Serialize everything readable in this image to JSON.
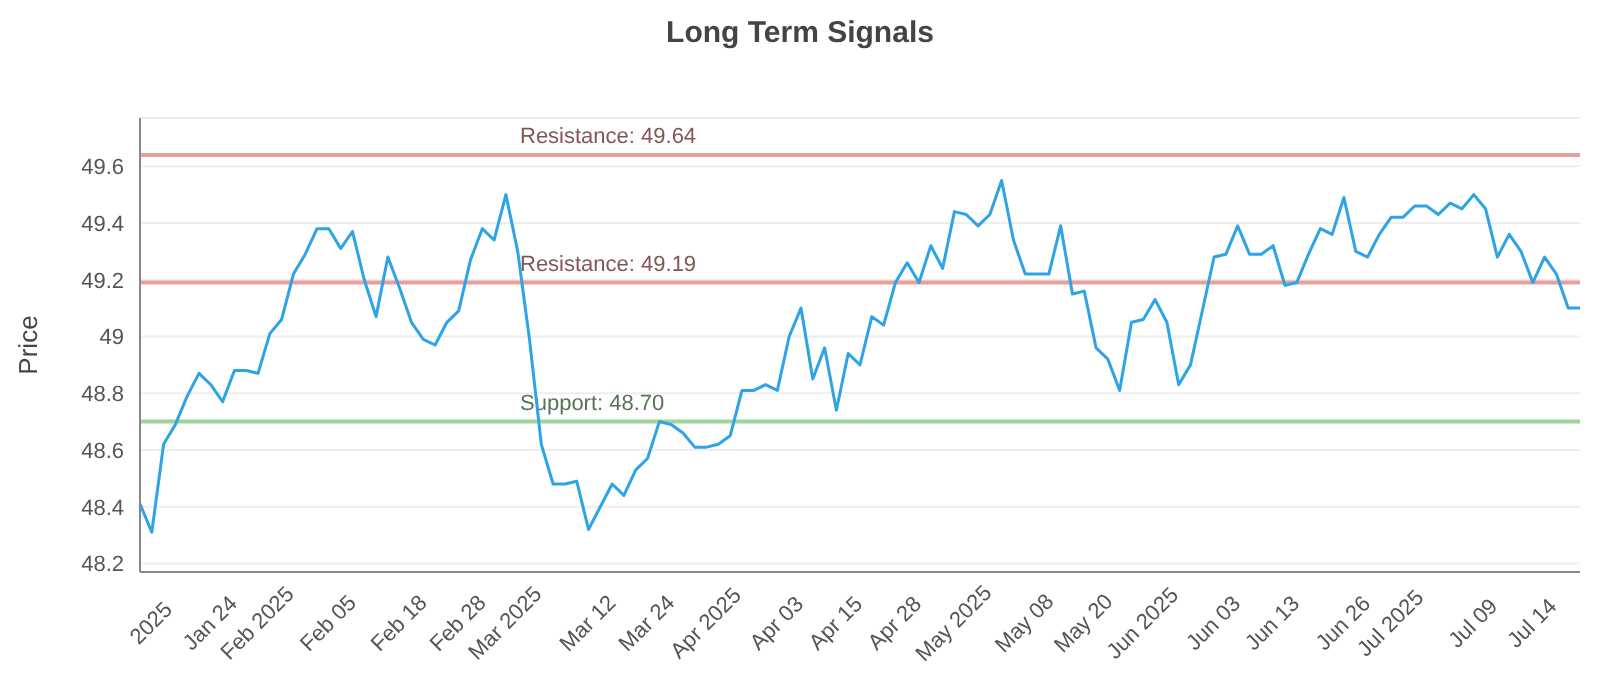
{
  "chart_data": {
    "type": "line",
    "title": "Long Term Signals",
    "ylabel": "Price",
    "categories": [
      null,
      "2025",
      null,
      null,
      null,
      null,
      "Jan 24",
      null,
      null,
      null,
      "Feb 2025",
      null,
      null,
      null,
      null,
      null,
      "Feb 05",
      null,
      null,
      null,
      null,
      null,
      "Feb 18",
      null,
      null,
      null,
      null,
      "Feb 28",
      null,
      null,
      null,
      "Mar 2025",
      null,
      null,
      null,
      null,
      null,
      null,
      "Mar 12",
      null,
      null,
      null,
      null,
      "Mar 24",
      null,
      null,
      null,
      null,
      "Apr 2025",
      null,
      null,
      null,
      null,
      null,
      "Apr 03",
      null,
      null,
      null,
      null,
      "Apr 15",
      null,
      null,
      null,
      null,
      "Apr 28",
      null,
      null,
      null,
      null,
      "May 2025",
      null,
      null,
      null,
      null,
      null,
      "May 08",
      null,
      null,
      null,
      null,
      "May 20",
      null,
      null,
      null,
      null,
      "Jun 2025",
      null,
      null,
      null,
      null,
      null,
      "Jun 03",
      null,
      null,
      null,
      null,
      "Jun 13",
      null,
      null,
      null,
      null,
      null,
      "Jun 26",
      null,
      null,
      null,
      "Jul 2025",
      null,
      null,
      null,
      null,
      null,
      null,
      "Jul 09",
      null,
      null,
      null,
      null,
      "Jul 14",
      null,
      null,
      null,
      null
    ],
    "series": [
      {
        "color": "#2ea3e6",
        "values": [
          48.41,
          48.31,
          48.62,
          48.69,
          48.79,
          48.87,
          48.83,
          48.77,
          48.88,
          48.88,
          48.87,
          49.01,
          49.06,
          49.22,
          49.29,
          49.38,
          49.38,
          49.31,
          49.37,
          49.2,
          49.07,
          49.28,
          49.17,
          49.05,
          48.99,
          48.97,
          49.05,
          49.09,
          49.27,
          49.38,
          49.34,
          49.5,
          49.3,
          48.99,
          48.62,
          48.48,
          48.48,
          48.49,
          48.32,
          48.4,
          48.48,
          48.44,
          48.53,
          48.57,
          48.7,
          48.69,
          48.66,
          48.61,
          48.61,
          48.62,
          48.65,
          48.81,
          48.81,
          48.83,
          48.81,
          49.0,
          49.1,
          48.85,
          48.96,
          48.74,
          48.94,
          48.9,
          49.07,
          49.04,
          49.19,
          49.26,
          49.19,
          49.32,
          49.24,
          49.44,
          49.43,
          49.39,
          49.43,
          49.55,
          49.34,
          49.22,
          49.22,
          49.22,
          49.39,
          49.15,
          49.16,
          48.96,
          48.92,
          48.81,
          49.05,
          49.06,
          49.13,
          49.05,
          48.83,
          48.9,
          49.09,
          49.28,
          49.29,
          49.39,
          49.29,
          49.29,
          49.32,
          49.18,
          49.19,
          49.29,
          49.38,
          49.36,
          49.49,
          49.3,
          49.28,
          49.36,
          49.42,
          49.42,
          49.46,
          49.46,
          49.43,
          49.47,
          49.45,
          49.5,
          49.45,
          49.28,
          49.36,
          49.3,
          49.19,
          49.28,
          49.22,
          49.1,
          49.1
        ]
      }
    ],
    "ylim": [
      48.17,
      49.77
    ],
    "yticks": [
      48.2,
      48.4,
      48.6,
      48.8,
      49.0,
      49.2,
      49.4,
      49.6
    ],
    "grid": "y",
    "marker": "none",
    "line_style": "solid",
    "legend": false,
    "ref_lines": [
      {
        "axis": "y",
        "value": 49.64,
        "label": "Resistance: 49.64",
        "color": "#e8a09c"
      },
      {
        "axis": "y",
        "value": 49.19,
        "label": "Resistance: 49.19",
        "color": "#e8a09c"
      },
      {
        "axis": "y",
        "value": 48.7,
        "label": "Support: 48.70",
        "color": "#9fd49a"
      }
    ]
  }
}
